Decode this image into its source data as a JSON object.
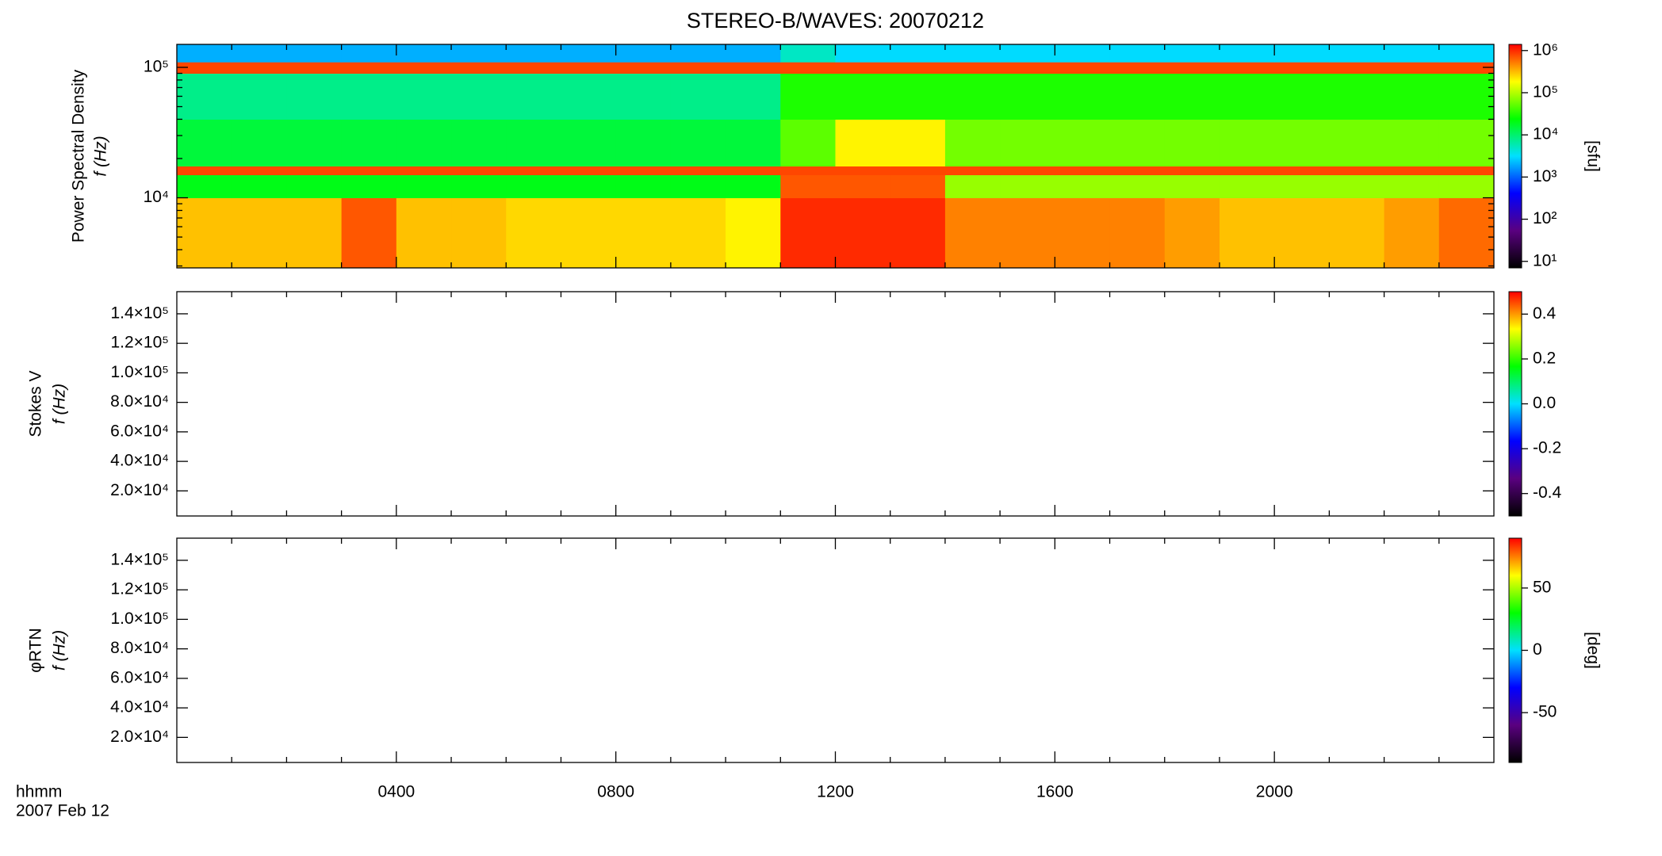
{
  "chart_data": [
    {
      "type": "heatmap",
      "title": "STEREO-B/WAVES: 20070212",
      "ylabel": [
        "Power Spectral Density",
        "f (Hz)"
      ],
      "xlim": [
        0,
        24
      ],
      "xminorticks": [
        1,
        2,
        3,
        5,
        6,
        7,
        9,
        10,
        11,
        13,
        14,
        15,
        17,
        18,
        19,
        21,
        22,
        23
      ],
      "ylim": [
        2900,
        150000
      ],
      "ylog": true,
      "yticks": [
        {
          "value": 10000,
          "label": "10⁴"
        },
        {
          "value": 100000,
          "label": "10⁵"
        }
      ],
      "yminorticks": [
        3000,
        4000,
        5000,
        6000,
        7000,
        8000,
        9000,
        20000,
        30000,
        40000,
        50000,
        60000,
        70000,
        80000,
        90000
      ],
      "xbins": [
        0,
        1,
        2,
        3,
        4,
        5,
        6,
        7,
        8,
        9,
        10,
        11,
        12,
        13,
        14,
        15,
        16,
        17,
        18,
        19,
        20,
        21,
        22,
        23,
        24
      ],
      "ybins": [
        2900,
        10000,
        15000,
        17500,
        40000,
        90000,
        110000,
        150000
      ],
      "z": [
        [
          300000,
          300000,
          300000,
          700000,
          300000,
          300000,
          250000,
          250000,
          250000,
          250000,
          200000,
          1000000,
          1000000,
          1000000,
          500000,
          500000,
          500000,
          500000,
          400000,
          300000,
          300000,
          300000,
          400000,
          600000
        ],
        [
          20000,
          20000,
          20000,
          20000,
          20000,
          20000,
          20000,
          20000,
          20000,
          20000,
          20000,
          700000,
          700000,
          700000,
          80000,
          80000,
          80000,
          80000,
          80000,
          80000,
          80000,
          80000,
          80000,
          80000
        ],
        [
          800000,
          800000,
          800000,
          800000,
          800000,
          800000,
          800000,
          800000,
          800000,
          800000,
          800000,
          800000,
          800000,
          800000,
          800000,
          800000,
          800000,
          800000,
          800000,
          800000,
          800000,
          800000,
          800000,
          800000
        ],
        [
          15000,
          15000,
          15000,
          15000,
          15000,
          15000,
          15000,
          15000,
          15000,
          15000,
          15000,
          50000,
          200000,
          200000,
          60000,
          60000,
          60000,
          60000,
          60000,
          60000,
          60000,
          60000,
          60000,
          60000
        ],
        [
          8000,
          8000,
          8000,
          8000,
          8000,
          8000,
          8000,
          8000,
          8000,
          8000,
          8000,
          30000,
          30000,
          30000,
          30000,
          30000,
          30000,
          30000,
          30000,
          30000,
          30000,
          30000,
          30000,
          30000
        ],
        [
          800000,
          800000,
          800000,
          800000,
          800000,
          800000,
          800000,
          800000,
          800000,
          800000,
          800000,
          800000,
          800000,
          800000,
          800000,
          800000,
          800000,
          800000,
          800000,
          800000,
          800000,
          800000,
          800000,
          800000
        ],
        [
          2000,
          2000,
          2000,
          2000,
          2000,
          2000,
          2000,
          2000,
          2000,
          2000,
          2000,
          5000,
          3000,
          3000,
          3000,
          3000,
          3000,
          3000,
          3000,
          3000,
          3000,
          3000,
          3000,
          3000
        ]
      ],
      "colormap": [
        "#000000",
        "#5a0080",
        "#0000ff",
        "#00e0ff",
        "#00ff00",
        "#ffff00",
        "#ff0000"
      ],
      "clim": [
        7,
        1400000
      ],
      "clog": true,
      "cticks": [
        {
          "value": 10,
          "label": "10¹"
        },
        {
          "value": 100,
          "label": "10²"
        },
        {
          "value": 1000,
          "label": "10³"
        },
        {
          "value": 10000,
          "label": "10⁴"
        },
        {
          "value": 100000,
          "label": "10⁵"
        },
        {
          "value": 1000000,
          "label": "10⁶"
        }
      ],
      "clabel": "[sfu]"
    },
    {
      "type": "heatmap",
      "ylabel": [
        "Stokes V",
        "f (Hz)"
      ],
      "xlim": [
        0,
        24
      ],
      "xminorticks": [
        1,
        2,
        3,
        5,
        6,
        7,
        9,
        10,
        11,
        13,
        14,
        15,
        17,
        18,
        19,
        21,
        22,
        23
      ],
      "ylim": [
        3000,
        155000
      ],
      "yticks": [
        {
          "value": 20000,
          "label": "2.0×10⁴"
        },
        {
          "value": 40000,
          "label": "4.0×10⁴"
        },
        {
          "value": 60000,
          "label": "6.0×10⁴"
        },
        {
          "value": 80000,
          "label": "8.0×10⁴"
        },
        {
          "value": 100000,
          "label": "1.0×10⁵"
        },
        {
          "value": 120000,
          "label": "1.2×10⁵"
        },
        {
          "value": 140000,
          "label": "1.4×10⁵"
        }
      ],
      "colormap": [
        "#000000",
        "#5a0080",
        "#0000ff",
        "#00e0ff",
        "#00ff00",
        "#ffff00",
        "#ff0000"
      ],
      "clim": [
        -0.5,
        0.5
      ],
      "cticks": [
        -0.4,
        -0.2,
        {
          "value": 0,
          "label": "0.0"
        },
        0.2,
        0.4
      ]
    },
    {
      "type": "heatmap",
      "ylabel": [
        "φRTN",
        "f (Hz)"
      ],
      "xlabel": [
        "hhmm",
        "2007 Feb 12"
      ],
      "xlim": [
        0,
        24
      ],
      "xminorticks": [
        1,
        2,
        3,
        5,
        6,
        7,
        9,
        10,
        11,
        13,
        14,
        15,
        17,
        18,
        19,
        21,
        22,
        23
      ],
      "xticks": [
        {
          "value": 4,
          "label": "0400"
        },
        {
          "value": 8,
          "label": "0800"
        },
        {
          "value": 12,
          "label": "1200"
        },
        {
          "value": 16,
          "label": "1600"
        },
        {
          "value": 20,
          "label": "2000"
        }
      ],
      "ylim": [
        3000,
        155000
      ],
      "yticks": [
        {
          "value": 20000,
          "label": "2.0×10⁴"
        },
        {
          "value": 40000,
          "label": "4.0×10⁴"
        },
        {
          "value": 60000,
          "label": "6.0×10⁴"
        },
        {
          "value": 80000,
          "label": "8.0×10⁴"
        },
        {
          "value": 100000,
          "label": "1.0×10⁵"
        },
        {
          "value": 120000,
          "label": "1.2×10⁵"
        },
        {
          "value": 140000,
          "label": "1.4×10⁵"
        }
      ],
      "colormap": [
        "#000000",
        "#5a0080",
        "#0000ff",
        "#00e0ff",
        "#00ff00",
        "#ffff00",
        "#ff0000"
      ],
      "clim": [
        -90,
        90
      ],
      "cticks": [
        -50,
        0,
        50
      ],
      "clabel": "[deg]"
    }
  ]
}
